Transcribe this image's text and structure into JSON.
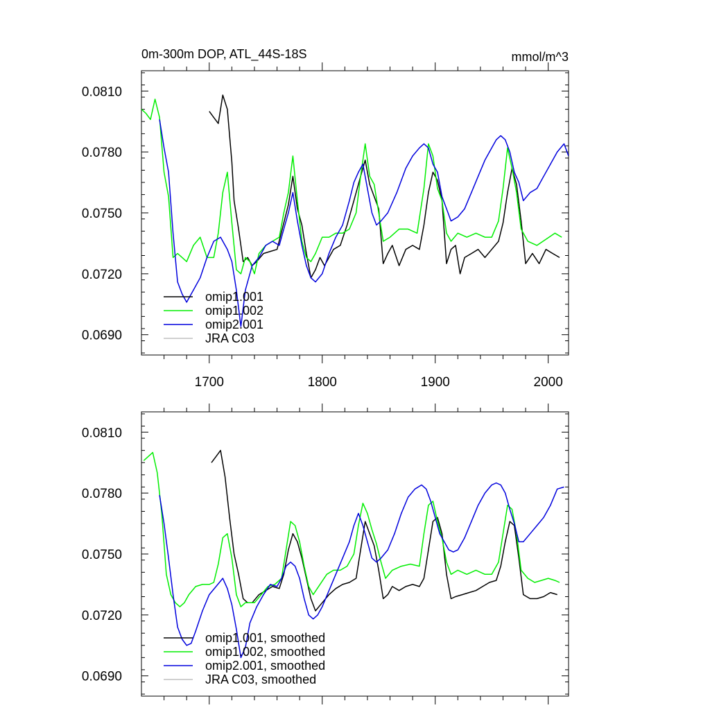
{
  "chart_data": [
    {
      "type": "line",
      "title": "0m-300m DOP, ATL_44S-18S",
      "units": "mmol/m^3",
      "xlim": [
        1640,
        2018
      ],
      "ylim": [
        0.068,
        0.082
      ],
      "x_ticks": [
        1700,
        1800,
        1900,
        2000
      ],
      "x_tick_labels": [
        "1700",
        "1800",
        "1900",
        "2000"
      ],
      "y_ticks": [
        0.081,
        0.078,
        0.075,
        0.072,
        0.069
      ],
      "y_tick_labels": [
        "0.0810",
        "0.0780",
        "0.0750",
        "0.0720",
        "0.0690"
      ],
      "legend": {
        "position": "lower-left",
        "entries": [
          {
            "label": "omip1.001",
            "color": "#000000"
          },
          {
            "label": "omip1.002",
            "color": "#00ee00"
          },
          {
            "label": "omip2.001",
            "color": "#0000dd"
          },
          {
            "label": "JRA C03",
            "color": "#c0c0c0"
          }
        ]
      },
      "series": [
        {
          "name": "omip1.001",
          "color": "#000000",
          "x": [
            1700,
            1704,
            1708,
            1712,
            1716,
            1720,
            1722,
            1726,
            1730,
            1734,
            1738,
            1742,
            1748,
            1754,
            1760,
            1766,
            1770,
            1774,
            1778,
            1782,
            1786,
            1790,
            1794,
            1798,
            1802,
            1806,
            1810,
            1816,
            1822,
            1828,
            1834,
            1838,
            1842,
            1846,
            1850,
            1854,
            1858,
            1862,
            1868,
            1874,
            1880,
            1886,
            1890,
            1894,
            1898,
            1902,
            1906,
            1910,
            1914,
            1918,
            1922,
            1926,
            1932,
            1938,
            1944,
            1950,
            1956,
            1960,
            1964,
            1968,
            1972,
            1976,
            1980,
            1986,
            1992,
            1998,
            2004,
            2010
          ],
          "y": [
            0.08,
            0.0797,
            0.0794,
            0.0808,
            0.0801,
            0.0775,
            0.0756,
            0.0742,
            0.0726,
            0.0728,
            0.0724,
            0.0726,
            0.073,
            0.0731,
            0.0732,
            0.0745,
            0.0754,
            0.0768,
            0.0752,
            0.0744,
            0.073,
            0.0718,
            0.0722,
            0.0728,
            0.0724,
            0.0728,
            0.0732,
            0.0734,
            0.0744,
            0.0756,
            0.0768,
            0.0776,
            0.0764,
            0.0758,
            0.0752,
            0.0725,
            0.073,
            0.0734,
            0.0724,
            0.0732,
            0.0734,
            0.0732,
            0.0744,
            0.076,
            0.077,
            0.0766,
            0.0756,
            0.0725,
            0.0732,
            0.0734,
            0.072,
            0.0728,
            0.073,
            0.0732,
            0.0728,
            0.0732,
            0.0736,
            0.0745,
            0.076,
            0.0772,
            0.0764,
            0.0746,
            0.0725,
            0.073,
            0.0725,
            0.0732,
            0.073,
            0.0728
          ]
        },
        {
          "name": "omip1.002",
          "color": "#00ee00",
          "x": [
            1640,
            1644,
            1648,
            1652,
            1656,
            1660,
            1664,
            1668,
            1672,
            1676,
            1680,
            1686,
            1692,
            1698,
            1704,
            1708,
            1712,
            1716,
            1720,
            1724,
            1728,
            1732,
            1736,
            1740,
            1744,
            1750,
            1756,
            1762,
            1766,
            1770,
            1774,
            1778,
            1782,
            1786,
            1790,
            1794,
            1800,
            1806,
            1812,
            1818,
            1824,
            1830,
            1834,
            1838,
            1842,
            1846,
            1850,
            1854,
            1860,
            1868,
            1876,
            1884,
            1890,
            1894,
            1898,
            1902,
            1906,
            1910,
            1914,
            1920,
            1928,
            1936,
            1944,
            1950,
            1956,
            1960,
            1964,
            1968,
            1972,
            1976,
            1982,
            1990,
            1998,
            2006,
            2012
          ],
          "y": [
            0.0801,
            0.0799,
            0.0796,
            0.0806,
            0.0797,
            0.077,
            0.0758,
            0.0728,
            0.073,
            0.0728,
            0.0726,
            0.0734,
            0.0738,
            0.0728,
            0.0728,
            0.074,
            0.076,
            0.077,
            0.0745,
            0.0722,
            0.072,
            0.0728,
            0.0726,
            0.072,
            0.073,
            0.0734,
            0.0736,
            0.0738,
            0.075,
            0.076,
            0.0778,
            0.0756,
            0.0736,
            0.0728,
            0.0726,
            0.073,
            0.0738,
            0.0738,
            0.074,
            0.074,
            0.0742,
            0.075,
            0.0768,
            0.0784,
            0.0768,
            0.0764,
            0.075,
            0.0736,
            0.0738,
            0.0742,
            0.0742,
            0.074,
            0.0762,
            0.0784,
            0.0778,
            0.0762,
            0.0756,
            0.074,
            0.0736,
            0.074,
            0.0738,
            0.074,
            0.0738,
            0.0738,
            0.0746,
            0.0762,
            0.0782,
            0.0772,
            0.076,
            0.0742,
            0.0736,
            0.0734,
            0.0737,
            0.074,
            0.0738
          ]
        },
        {
          "name": "omip2.001",
          "color": "#0000dd",
          "x": [
            1656,
            1660,
            1664,
            1668,
            1672,
            1676,
            1680,
            1686,
            1692,
            1698,
            1704,
            1710,
            1716,
            1720,
            1724,
            1728,
            1732,
            1738,
            1744,
            1750,
            1756,
            1762,
            1766,
            1770,
            1774,
            1778,
            1782,
            1786,
            1790,
            1794,
            1800,
            1806,
            1812,
            1818,
            1824,
            1828,
            1832,
            1836,
            1840,
            1844,
            1848,
            1852,
            1858,
            1866,
            1874,
            1880,
            1886,
            1890,
            1894,
            1898,
            1902,
            1906,
            1910,
            1914,
            1920,
            1926,
            1932,
            1938,
            1944,
            1950,
            1954,
            1958,
            1962,
            1966,
            1970,
            1974,
            1978,
            1984,
            1990,
            1996,
            2002,
            2008,
            2014,
            2018
          ],
          "y": [
            0.0796,
            0.0782,
            0.077,
            0.074,
            0.0716,
            0.071,
            0.0706,
            0.0712,
            0.0718,
            0.0728,
            0.0736,
            0.0738,
            0.0732,
            0.0726,
            0.0712,
            0.0694,
            0.0712,
            0.0724,
            0.0728,
            0.0734,
            0.0736,
            0.0734,
            0.0742,
            0.075,
            0.076,
            0.0746,
            0.0734,
            0.0724,
            0.0718,
            0.0716,
            0.072,
            0.073,
            0.0738,
            0.0744,
            0.0756,
            0.0765,
            0.077,
            0.0774,
            0.0762,
            0.075,
            0.0744,
            0.0746,
            0.075,
            0.076,
            0.0772,
            0.0778,
            0.0782,
            0.0784,
            0.0782,
            0.0774,
            0.077,
            0.0758,
            0.0752,
            0.0746,
            0.0748,
            0.0752,
            0.076,
            0.0768,
            0.0776,
            0.0782,
            0.0786,
            0.0788,
            0.0786,
            0.078,
            0.077,
            0.0765,
            0.0756,
            0.076,
            0.0762,
            0.0768,
            0.0774,
            0.078,
            0.0784,
            0.0778
          ]
        }
      ]
    },
    {
      "type": "line",
      "title": "",
      "units": "",
      "xlim": [
        1640,
        2018
      ],
      "ylim": [
        0.068,
        0.082
      ],
      "x_ticks": [
        1700,
        1800,
        1900,
        2000
      ],
      "y_ticks": [
        0.081,
        0.078,
        0.075,
        0.072,
        0.069
      ],
      "y_tick_labels": [
        "0.0810",
        "0.0780",
        "0.0750",
        "0.0720",
        "0.0690"
      ],
      "legend": {
        "position": "lower-left",
        "entries": [
          {
            "label": "omip1.001, smoothed",
            "color": "#000000"
          },
          {
            "label": "omip1.002, smoothed",
            "color": "#00ee00"
          },
          {
            "label": "omip2.001, smoothed",
            "color": "#0000dd"
          },
          {
            "label": "JRA C03, smoothed",
            "color": "#c0c0c0"
          }
        ]
      },
      "series": [
        {
          "name": "omip1.001, smoothed",
          "color": "#000000",
          "x": [
            1702,
            1706,
            1710,
            1714,
            1718,
            1722,
            1726,
            1730,
            1734,
            1738,
            1744,
            1750,
            1756,
            1762,
            1766,
            1770,
            1774,
            1778,
            1782,
            1786,
            1790,
            1794,
            1800,
            1806,
            1812,
            1818,
            1824,
            1830,
            1834,
            1838,
            1842,
            1846,
            1850,
            1854,
            1858,
            1862,
            1868,
            1874,
            1880,
            1886,
            1890,
            1894,
            1898,
            1902,
            1906,
            1910,
            1914,
            1918,
            1924,
            1930,
            1936,
            1942,
            1948,
            1954,
            1958,
            1962,
            1966,
            1970,
            1974,
            1978,
            1984,
            1990,
            1996,
            2002,
            2008
          ],
          "y": [
            0.0795,
            0.0798,
            0.0801,
            0.0788,
            0.0768,
            0.075,
            0.074,
            0.0728,
            0.0726,
            0.0726,
            0.073,
            0.0732,
            0.0734,
            0.0733,
            0.074,
            0.0752,
            0.076,
            0.0756,
            0.0748,
            0.0738,
            0.0728,
            0.0722,
            0.0726,
            0.073,
            0.0733,
            0.0735,
            0.0736,
            0.0738,
            0.0752,
            0.0766,
            0.076,
            0.0754,
            0.0742,
            0.0728,
            0.073,
            0.0734,
            0.0732,
            0.0734,
            0.0735,
            0.0734,
            0.0738,
            0.0752,
            0.0766,
            0.0768,
            0.076,
            0.074,
            0.0728,
            0.0729,
            0.073,
            0.0731,
            0.0732,
            0.0734,
            0.0736,
            0.0737,
            0.0744,
            0.0756,
            0.0766,
            0.0764,
            0.0748,
            0.073,
            0.0728,
            0.0728,
            0.0729,
            0.0731,
            0.073
          ]
        },
        {
          "name": "omip1.002, smoothed",
          "color": "#00ee00",
          "x": [
            1642,
            1646,
            1650,
            1654,
            1658,
            1662,
            1666,
            1670,
            1674,
            1678,
            1682,
            1688,
            1694,
            1700,
            1704,
            1708,
            1712,
            1716,
            1720,
            1724,
            1728,
            1732,
            1736,
            1740,
            1746,
            1752,
            1758,
            1764,
            1768,
            1772,
            1776,
            1780,
            1784,
            1788,
            1792,
            1798,
            1804,
            1810,
            1816,
            1822,
            1828,
            1832,
            1836,
            1840,
            1844,
            1848,
            1852,
            1856,
            1862,
            1870,
            1878,
            1886,
            1890,
            1894,
            1898,
            1902,
            1906,
            1910,
            1914,
            1920,
            1928,
            1936,
            1944,
            1950,
            1956,
            1960,
            1964,
            1968,
            1972,
            1976,
            1982,
            1988,
            1994,
            2000,
            2006,
            2010
          ],
          "y": [
            0.0796,
            0.0798,
            0.08,
            0.079,
            0.077,
            0.074,
            0.073,
            0.0726,
            0.0724,
            0.0726,
            0.073,
            0.0734,
            0.0735,
            0.0735,
            0.0736,
            0.0745,
            0.0758,
            0.076,
            0.0748,
            0.073,
            0.0724,
            0.0726,
            0.0726,
            0.0726,
            0.073,
            0.0734,
            0.0735,
            0.0738,
            0.0752,
            0.0766,
            0.0764,
            0.0756,
            0.0744,
            0.0734,
            0.073,
            0.0735,
            0.074,
            0.0742,
            0.0742,
            0.0744,
            0.075,
            0.0764,
            0.0775,
            0.077,
            0.0762,
            0.0755,
            0.0746,
            0.0738,
            0.0742,
            0.0744,
            0.0745,
            0.0744,
            0.076,
            0.0774,
            0.0776,
            0.0766,
            0.0758,
            0.0746,
            0.074,
            0.0742,
            0.074,
            0.0742,
            0.074,
            0.074,
            0.0746,
            0.076,
            0.0774,
            0.0772,
            0.076,
            0.0742,
            0.0738,
            0.0736,
            0.0737,
            0.0738,
            0.0737,
            0.0736
          ]
        },
        {
          "name": "omip2.001, smoothed",
          "color": "#0000dd",
          "x": [
            1656,
            1660,
            1664,
            1668,
            1672,
            1676,
            1680,
            1684,
            1688,
            1694,
            1700,
            1706,
            1712,
            1716,
            1720,
            1724,
            1728,
            1732,
            1736,
            1742,
            1748,
            1754,
            1760,
            1764,
            1768,
            1772,
            1776,
            1780,
            1784,
            1788,
            1792,
            1796,
            1800,
            1806,
            1812,
            1818,
            1824,
            1828,
            1832,
            1836,
            1840,
            1844,
            1848,
            1852,
            1858,
            1864,
            1870,
            1876,
            1882,
            1888,
            1892,
            1896,
            1900,
            1904,
            1908,
            1912,
            1916,
            1920,
            1926,
            1932,
            1938,
            1944,
            1950,
            1954,
            1958,
            1962,
            1966,
            1970,
            1974,
            1978,
            1984,
            1990,
            1996,
            2002,
            2008,
            2014
          ],
          "y": [
            0.0779,
            0.0765,
            0.0748,
            0.073,
            0.0714,
            0.0708,
            0.0705,
            0.0706,
            0.0712,
            0.0722,
            0.073,
            0.0734,
            0.0738,
            0.0733,
            0.0725,
            0.0713,
            0.0699,
            0.0704,
            0.0716,
            0.0724,
            0.073,
            0.0735,
            0.0734,
            0.0738,
            0.0744,
            0.0746,
            0.0744,
            0.0738,
            0.0728,
            0.072,
            0.0718,
            0.072,
            0.0724,
            0.0732,
            0.074,
            0.0748,
            0.0756,
            0.0764,
            0.077,
            0.0764,
            0.0756,
            0.0748,
            0.0746,
            0.0748,
            0.0752,
            0.076,
            0.077,
            0.0778,
            0.0782,
            0.0784,
            0.0782,
            0.0776,
            0.0768,
            0.076,
            0.0756,
            0.0752,
            0.0751,
            0.0752,
            0.0758,
            0.0766,
            0.0774,
            0.078,
            0.0784,
            0.0785,
            0.0784,
            0.078,
            0.0772,
            0.0765,
            0.0756,
            0.0756,
            0.076,
            0.0764,
            0.0768,
            0.0774,
            0.0782,
            0.0783
          ]
        }
      ]
    }
  ]
}
